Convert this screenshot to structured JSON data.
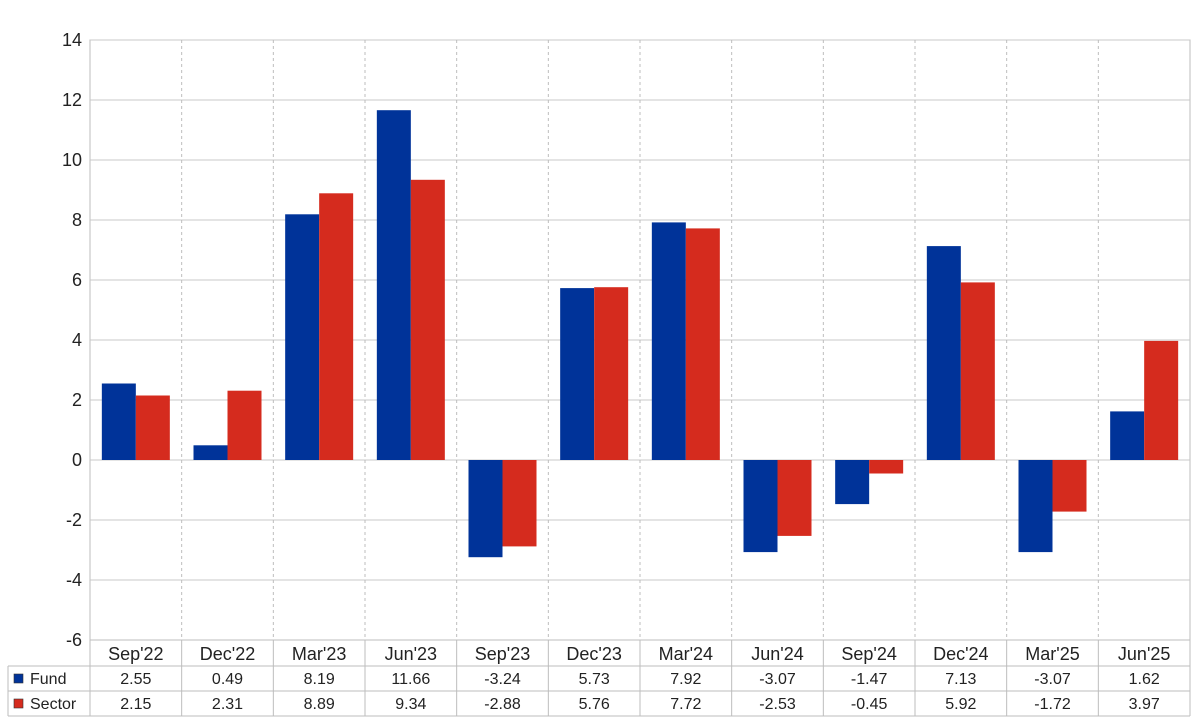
{
  "chart_data": {
    "type": "bar",
    "categories": [
      "Sep'22",
      "Dec'22",
      "Mar'23",
      "Jun'23",
      "Sep'23",
      "Dec'23",
      "Mar'24",
      "Jun'24",
      "Sep'24",
      "Dec'24",
      "Mar'25",
      "Jun'25"
    ],
    "series": [
      {
        "name": "Fund",
        "color": "#003399",
        "values": [
          2.55,
          0.49,
          8.19,
          11.66,
          -3.24,
          5.73,
          7.92,
          -3.07,
          -1.47,
          7.13,
          -3.07,
          1.62
        ]
      },
      {
        "name": "Sector",
        "color": "#d52b1e",
        "values": [
          2.15,
          2.31,
          8.89,
          9.34,
          -2.88,
          5.76,
          7.72,
          -2.53,
          -0.45,
          5.92,
          -1.72,
          3.97
        ]
      }
    ],
    "ylim": [
      -6,
      14
    ],
    "yticks": [
      "-6",
      "-4",
      "-2",
      "0",
      "2",
      "4",
      "6",
      "8",
      "10",
      "12",
      "14"
    ],
    "table": {
      "rows": [
        {
          "label": "Fund",
          "values": [
            "2.55",
            "0.49",
            "8.19",
            "11.66",
            "-3.24",
            "5.73",
            "7.92",
            "-3.07",
            "-1.47",
            "7.13",
            "-3.07",
            "1.62"
          ]
        },
        {
          "label": "Sector",
          "values": [
            "2.15",
            "2.31",
            "8.89",
            "9.34",
            "-2.88",
            "5.76",
            "7.72",
            "-2.53",
            "-0.45",
            "5.92",
            "-1.72",
            "3.97"
          ]
        }
      ]
    },
    "negative_color": "#ff0000",
    "grid": true
  }
}
